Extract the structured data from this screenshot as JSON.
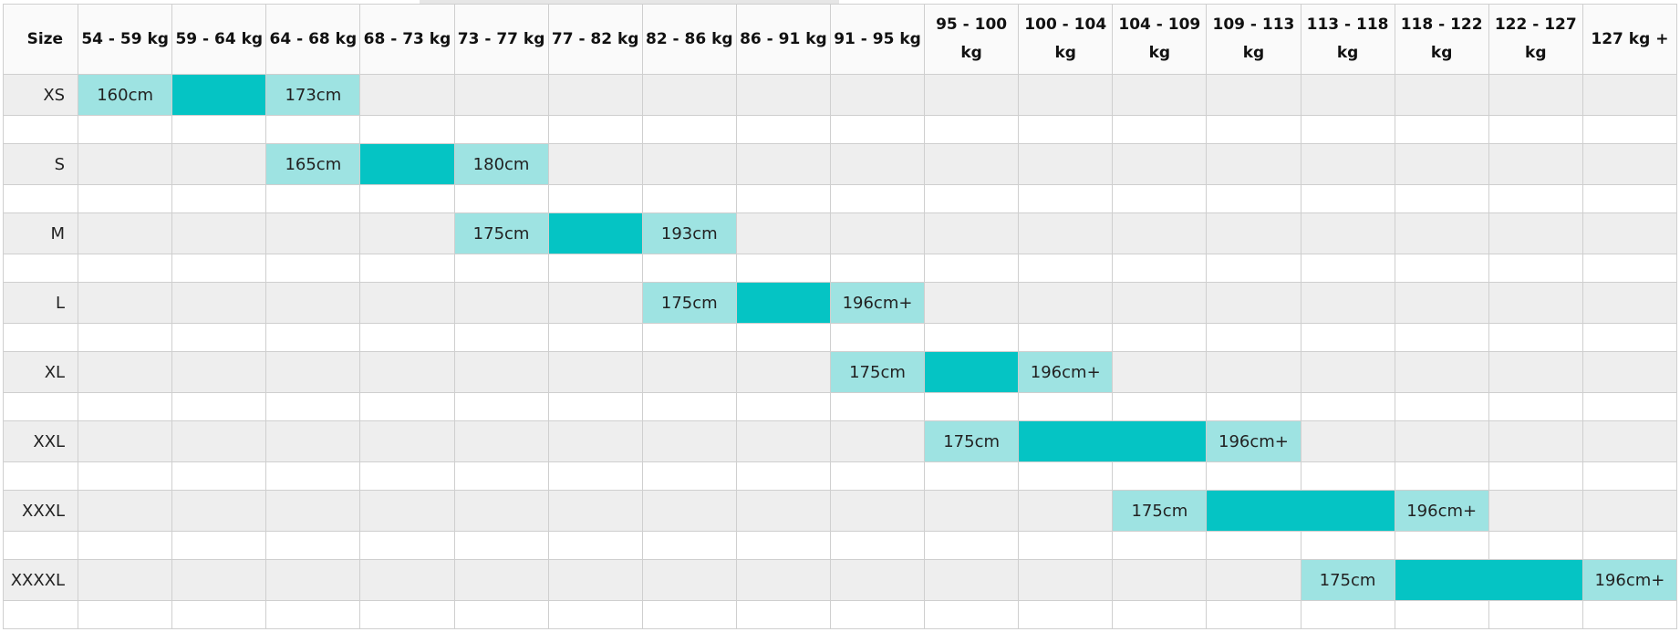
{
  "colors": {
    "range_endpoint": "#9ee3e2",
    "range_fill": "#05c4c4",
    "row_background": "#eeeeee",
    "grid": "#cfcfcf"
  },
  "table": {
    "size_header": "Size",
    "weight_columns": [
      "54 - 59 kg",
      "59 - 64 kg",
      "64 - 68 kg",
      "68 - 73 kg",
      "73 - 77 kg",
      "77 - 82 kg",
      "82 - 86 kg",
      "86 - 91 kg",
      "91 - 95 kg",
      "95 - 100 kg",
      "100 - 104 kg",
      "104 - 109 kg",
      "109 - 113 kg",
      "113 - 118 kg",
      "118 - 122 kg",
      "122 - 127 kg",
      "127 kg +"
    ],
    "rows": [
      {
        "size": "XS",
        "start_col": 0,
        "end_col": 2,
        "start_label": "160cm",
        "end_label": "173cm"
      },
      {
        "size": "S",
        "start_col": 2,
        "end_col": 4,
        "start_label": "165cm",
        "end_label": "180cm"
      },
      {
        "size": "M",
        "start_col": 4,
        "end_col": 6,
        "start_label": "175cm",
        "end_label": "193cm"
      },
      {
        "size": "L",
        "start_col": 6,
        "end_col": 8,
        "start_label": "175cm",
        "end_label": "196cm+"
      },
      {
        "size": "XL",
        "start_col": 8,
        "end_col": 10,
        "start_label": "175cm",
        "end_label": "196cm+"
      },
      {
        "size": "XXL",
        "start_col": 9,
        "end_col": 12,
        "start_label": "175cm",
        "end_label": "196cm+"
      },
      {
        "size": "XXXL",
        "start_col": 11,
        "end_col": 14,
        "start_label": "175cm",
        "end_label": "196cm+"
      },
      {
        "size": "XXXXL",
        "start_col": 13,
        "end_col": 16,
        "start_label": "175cm",
        "end_label": "196cm+"
      }
    ]
  }
}
